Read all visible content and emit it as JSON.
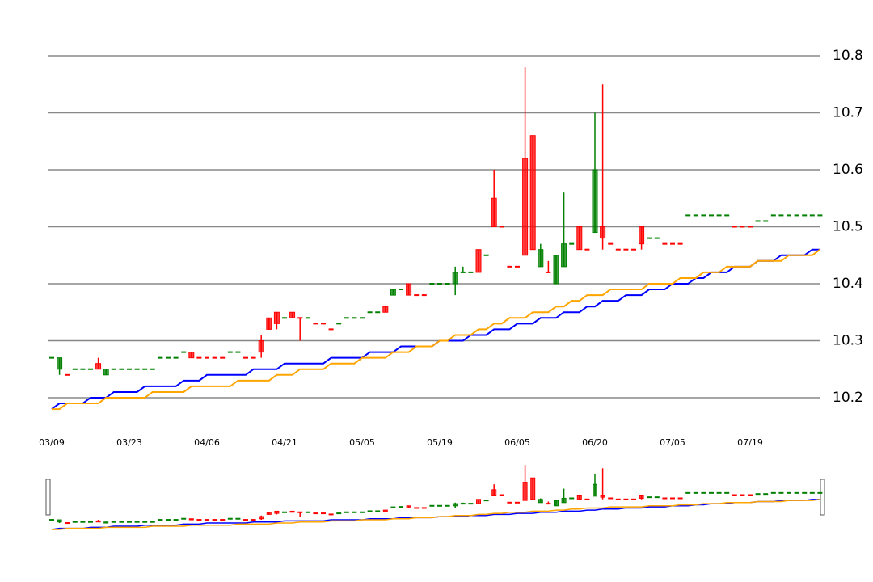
{
  "chart_data": {
    "type": "candlestick",
    "categories": [
      "03/09",
      null,
      null,
      null,
      null,
      null,
      null,
      null,
      null,
      null,
      "03/23",
      null,
      null,
      null,
      null,
      null,
      null,
      null,
      null,
      null,
      "04/06",
      null,
      null,
      null,
      null,
      null,
      null,
      null,
      null,
      null,
      "04/21",
      null,
      null,
      null,
      null,
      null,
      null,
      null,
      null,
      null,
      "05/05",
      null,
      null,
      null,
      null,
      null,
      null,
      null,
      null,
      null,
      "05/19",
      null,
      null,
      null,
      null,
      null,
      null,
      null,
      null,
      null,
      "06/05",
      null,
      null,
      null,
      null,
      null,
      null,
      null,
      null,
      null,
      "06/20",
      null,
      null,
      null,
      null,
      null,
      null,
      null,
      null,
      null,
      "07/05",
      null,
      null,
      null,
      null,
      null,
      null,
      null,
      null,
      null,
      "07/19",
      null,
      null,
      null,
      null,
      null,
      null,
      null,
      null,
      null
    ],
    "open": [
      10.27,
      10.27,
      10.24,
      10.25,
      10.25,
      10.25,
      10.25,
      10.25,
      10.25,
      10.25,
      10.25,
      10.25,
      10.25,
      10.25,
      10.27,
      10.27,
      10.27,
      10.28,
      10.27,
      10.27,
      10.27,
      10.27,
      10.27,
      10.28,
      10.28,
      10.27,
      10.27,
      10.28,
      10.32,
      10.33,
      10.34,
      10.34,
      10.34,
      10.34,
      10.33,
      10.33,
      10.32,
      10.33,
      10.34,
      10.34,
      10.34,
      10.35,
      10.35,
      10.35,
      10.39,
      10.39,
      10.38,
      10.38,
      10.38,
      10.4,
      10.4,
      10.4,
      10.42,
      10.42,
      10.42,
      10.42,
      10.45,
      10.5,
      10.5,
      10.43,
      10.43,
      10.45,
      10.46,
      10.46,
      10.42,
      10.45,
      10.47,
      10.47,
      10.46,
      10.46,
      10.6,
      10.48,
      10.47,
      10.46,
      10.46,
      10.46,
      10.47,
      10.48,
      10.48,
      10.47,
      10.47,
      10.47,
      10.52,
      10.52,
      10.52,
      10.52,
      10.52,
      10.52,
      10.5,
      10.5,
      10.5,
      10.51,
      10.51,
      10.52,
      10.52,
      10.52,
      10.52,
      10.52,
      10.52,
      10.52
    ],
    "close": [
      10.27,
      10.25,
      10.24,
      10.25,
      10.25,
      10.25,
      10.26,
      10.24,
      10.25,
      10.25,
      10.25,
      10.25,
      10.25,
      10.25,
      10.27,
      10.27,
      10.27,
      10.28,
      10.28,
      10.27,
      10.27,
      10.27,
      10.27,
      10.28,
      10.28,
      10.27,
      10.27,
      10.3,
      10.34,
      10.35,
      10.34,
      10.35,
      10.34,
      10.34,
      10.33,
      10.33,
      10.32,
      10.33,
      10.34,
      10.34,
      10.34,
      10.35,
      10.35,
      10.36,
      10.38,
      10.39,
      10.4,
      10.38,
      10.38,
      10.4,
      10.4,
      10.4,
      10.4,
      10.42,
      10.42,
      10.46,
      10.45,
      10.55,
      10.5,
      10.43,
      10.43,
      10.62,
      10.66,
      10.43,
      10.42,
      10.4,
      10.43,
      10.47,
      10.5,
      10.46,
      10.49,
      10.5,
      10.47,
      10.46,
      10.46,
      10.46,
      10.5,
      10.48,
      10.48,
      10.47,
      10.47,
      10.47,
      10.52,
      10.52,
      10.52,
      10.52,
      10.52,
      10.52,
      10.5,
      10.5,
      10.5,
      10.51,
      10.51,
      10.52,
      10.52,
      10.52,
      10.52,
      10.52,
      10.52,
      10.52
    ],
    "low": [
      10.27,
      10.24,
      10.24,
      10.25,
      10.25,
      10.25,
      10.25,
      10.24,
      10.25,
      10.25,
      10.25,
      10.25,
      10.25,
      10.25,
      10.27,
      10.27,
      10.27,
      10.28,
      10.27,
      10.27,
      10.27,
      10.27,
      10.27,
      10.28,
      10.28,
      10.27,
      10.27,
      10.27,
      10.32,
      10.32,
      10.34,
      10.34,
      10.3,
      10.34,
      10.33,
      10.33,
      10.32,
      10.33,
      10.34,
      10.34,
      10.34,
      10.35,
      10.35,
      10.35,
      10.38,
      10.39,
      10.38,
      10.38,
      10.38,
      10.4,
      10.4,
      10.4,
      10.38,
      10.42,
      10.42,
      10.42,
      10.45,
      10.5,
      10.5,
      10.43,
      10.43,
      10.45,
      10.46,
      10.43,
      10.42,
      10.4,
      10.43,
      10.47,
      10.46,
      10.46,
      10.49,
      10.46,
      10.47,
      10.46,
      10.46,
      10.46,
      10.46,
      10.48,
      10.48,
      10.47,
      10.47,
      10.47,
      10.52,
      10.52,
      10.52,
      10.52,
      10.52,
      10.52,
      10.5,
      10.5,
      10.5,
      10.51,
      10.51,
      10.52,
      10.52,
      10.52,
      10.52,
      10.52,
      10.52,
      10.52
    ],
    "high": [
      10.27,
      10.27,
      10.24,
      10.25,
      10.25,
      10.25,
      10.27,
      10.25,
      10.25,
      10.25,
      10.25,
      10.25,
      10.25,
      10.25,
      10.27,
      10.27,
      10.27,
      10.28,
      10.28,
      10.27,
      10.27,
      10.27,
      10.27,
      10.28,
      10.28,
      10.27,
      10.27,
      10.31,
      10.34,
      10.35,
      10.34,
      10.35,
      10.34,
      10.34,
      10.33,
      10.33,
      10.32,
      10.33,
      10.34,
      10.34,
      10.34,
      10.35,
      10.35,
      10.36,
      10.39,
      10.39,
      10.4,
      10.38,
      10.38,
      10.4,
      10.4,
      10.4,
      10.43,
      10.43,
      10.42,
      10.46,
      10.45,
      10.6,
      10.5,
      10.43,
      10.43,
      10.78,
      10.66,
      10.47,
      10.44,
      10.45,
      10.56,
      10.47,
      10.5,
      10.46,
      10.7,
      10.75,
      10.47,
      10.46,
      10.46,
      10.46,
      10.5,
      10.48,
      10.48,
      10.47,
      10.47,
      10.47,
      10.52,
      10.52,
      10.52,
      10.52,
      10.52,
      10.52,
      10.5,
      10.5,
      10.5,
      10.51,
      10.51,
      10.52,
      10.52,
      10.52,
      10.52,
      10.52,
      10.52,
      10.52
    ],
    "colors": [
      "#008000",
      "#008000",
      "#ff0000",
      "#008000",
      "#008000",
      "#008000",
      "#ff0000",
      "#008000",
      "#008000",
      "#008000",
      "#008000",
      "#008000",
      "#008000",
      "#008000",
      "#008000",
      "#008000",
      "#008000",
      "#008000",
      "#ff0000",
      "#ff0000",
      "#ff0000",
      "#ff0000",
      "#ff0000",
      "#008000",
      "#008000",
      "#ff0000",
      "#ff0000",
      "#ff0000",
      "#ff0000",
      "#ff0000",
      "#008000",
      "#ff0000",
      "#ff0000",
      "#008000",
      "#ff0000",
      "#ff0000",
      "#ff0000",
      "#008000",
      "#008000",
      "#008000",
      "#008000",
      "#008000",
      "#008000",
      "#ff0000",
      "#008000",
      "#008000",
      "#ff0000",
      "#ff0000",
      "#ff0000",
      "#008000",
      "#008000",
      "#008000",
      "#008000",
      "#008000",
      "#008000",
      "#ff0000",
      "#008000",
      "#ff0000",
      "#ff0000",
      "#ff0000",
      "#ff0000",
      "#ff0000",
      "#ff0000",
      "#008000",
      "#ff0000",
      "#008000",
      "#008000",
      "#008000",
      "#ff0000",
      "#ff0000",
      "#008000",
      "#ff0000",
      "#ff0000",
      "#ff0000",
      "#ff0000",
      "#ff0000",
      "#ff0000",
      "#008000",
      "#008000",
      "#ff0000",
      "#ff0000",
      "#ff0000",
      "#008000",
      "#008000",
      "#008000",
      "#008000",
      "#008000",
      "#008000",
      "#ff0000",
      "#ff0000",
      "#ff0000",
      "#008000",
      "#008000",
      "#008000",
      "#008000",
      "#008000",
      "#008000",
      "#008000",
      "#008000",
      "#008000"
    ],
    "lines": [
      {
        "color": "#0000ff",
        "values": [
          10.18,
          10.19,
          10.19,
          10.19,
          10.19,
          10.2,
          10.2,
          10.2,
          10.21,
          10.21,
          10.21,
          10.21,
          10.22,
          10.22,
          10.22,
          10.22,
          10.22,
          10.23,
          10.23,
          10.23,
          10.24,
          10.24,
          10.24,
          10.24,
          10.24,
          10.24,
          10.25,
          10.25,
          10.25,
          10.25,
          10.26,
          10.26,
          10.26,
          10.26,
          10.26,
          10.26,
          10.27,
          10.27,
          10.27,
          10.27,
          10.27,
          10.28,
          10.28,
          10.28,
          10.28,
          10.29,
          10.29,
          10.29,
          10.29,
          10.29,
          10.3,
          10.3,
          10.3,
          10.3,
          10.31,
          10.31,
          10.31,
          10.32,
          10.32,
          10.32,
          10.33,
          10.33,
          10.33,
          10.34,
          10.34,
          10.34,
          10.35,
          10.35,
          10.35,
          10.36,
          10.36,
          10.37,
          10.37,
          10.37,
          10.38,
          10.38,
          10.38,
          10.39,
          10.39,
          10.39,
          10.4,
          10.4,
          10.4,
          10.41,
          10.41,
          10.42,
          10.42,
          10.42,
          10.43,
          10.43,
          10.43,
          10.44,
          10.44,
          10.44,
          10.45,
          10.45,
          10.45,
          10.45,
          10.46,
          10.46
        ]
      },
      {
        "color": "#ffa500",
        "values": [
          10.18,
          10.18,
          10.19,
          10.19,
          10.19,
          10.19,
          10.19,
          10.2,
          10.2,
          10.2,
          10.2,
          10.2,
          10.2,
          10.21,
          10.21,
          10.21,
          10.21,
          10.21,
          10.22,
          10.22,
          10.22,
          10.22,
          10.22,
          10.22,
          10.23,
          10.23,
          10.23,
          10.23,
          10.23,
          10.24,
          10.24,
          10.24,
          10.25,
          10.25,
          10.25,
          10.25,
          10.26,
          10.26,
          10.26,
          10.26,
          10.27,
          10.27,
          10.27,
          10.27,
          10.28,
          10.28,
          10.28,
          10.29,
          10.29,
          10.29,
          10.3,
          10.3,
          10.31,
          10.31,
          10.31,
          10.32,
          10.32,
          10.33,
          10.33,
          10.34,
          10.34,
          10.34,
          10.35,
          10.35,
          10.35,
          10.36,
          10.36,
          10.37,
          10.37,
          10.38,
          10.38,
          10.38,
          10.39,
          10.39,
          10.39,
          10.39,
          10.39,
          10.4,
          10.4,
          10.4,
          10.4,
          10.41,
          10.41,
          10.41,
          10.42,
          10.42,
          10.42,
          10.43,
          10.43,
          10.43,
          10.43,
          10.44,
          10.44,
          10.44,
          10.44,
          10.45,
          10.45,
          10.45,
          10.45,
          10.46
        ]
      }
    ],
    "ylim": [
      10.15,
      10.85
    ],
    "yticks": [
      10.2,
      10.3,
      10.4,
      10.5,
      10.6,
      10.7,
      10.8
    ],
    "grid": true
  }
}
